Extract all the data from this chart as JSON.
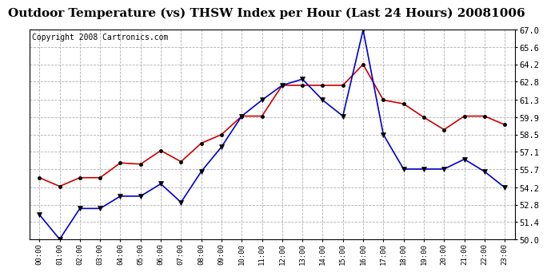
{
  "title": "Outdoor Temperature (vs) THSW Index per Hour (Last 24 Hours) 20081006",
  "copyright": "Copyright 2008 Cartronics.com",
  "hours": [
    "00:00",
    "01:00",
    "02:00",
    "03:00",
    "04:00",
    "05:00",
    "06:00",
    "07:00",
    "08:00",
    "09:00",
    "10:00",
    "11:00",
    "12:00",
    "13:00",
    "14:00",
    "15:00",
    "16:00",
    "17:00",
    "18:00",
    "19:00",
    "20:00",
    "21:00",
    "22:00",
    "23:00"
  ],
  "outdoor_temp": [
    55.0,
    54.3,
    55.0,
    55.0,
    56.2,
    56.1,
    57.2,
    56.3,
    57.8,
    58.5,
    60.0,
    60.0,
    62.5,
    62.5,
    62.5,
    62.5,
    64.2,
    61.3,
    61.0,
    59.9,
    58.9,
    60.0,
    60.0,
    59.3
  ],
  "thsw_index": [
    52.0,
    50.0,
    52.5,
    52.5,
    53.5,
    53.5,
    54.5,
    53.0,
    55.5,
    57.5,
    60.0,
    61.3,
    62.5,
    63.0,
    61.3,
    60.0,
    67.0,
    58.5,
    55.7,
    55.7,
    55.7,
    56.5,
    55.5,
    54.2
  ],
  "ylim": [
    50.0,
    67.0
  ],
  "yticks": [
    50.0,
    51.4,
    52.8,
    54.2,
    55.7,
    57.1,
    58.5,
    59.9,
    61.3,
    62.8,
    64.2,
    65.6,
    67.0
  ],
  "temp_color": "#cc0000",
  "thsw_color": "#0000cc",
  "bg_color": "#ffffff",
  "grid_color": "#b0b0b0",
  "title_fontsize": 11,
  "copyright_fontsize": 7
}
